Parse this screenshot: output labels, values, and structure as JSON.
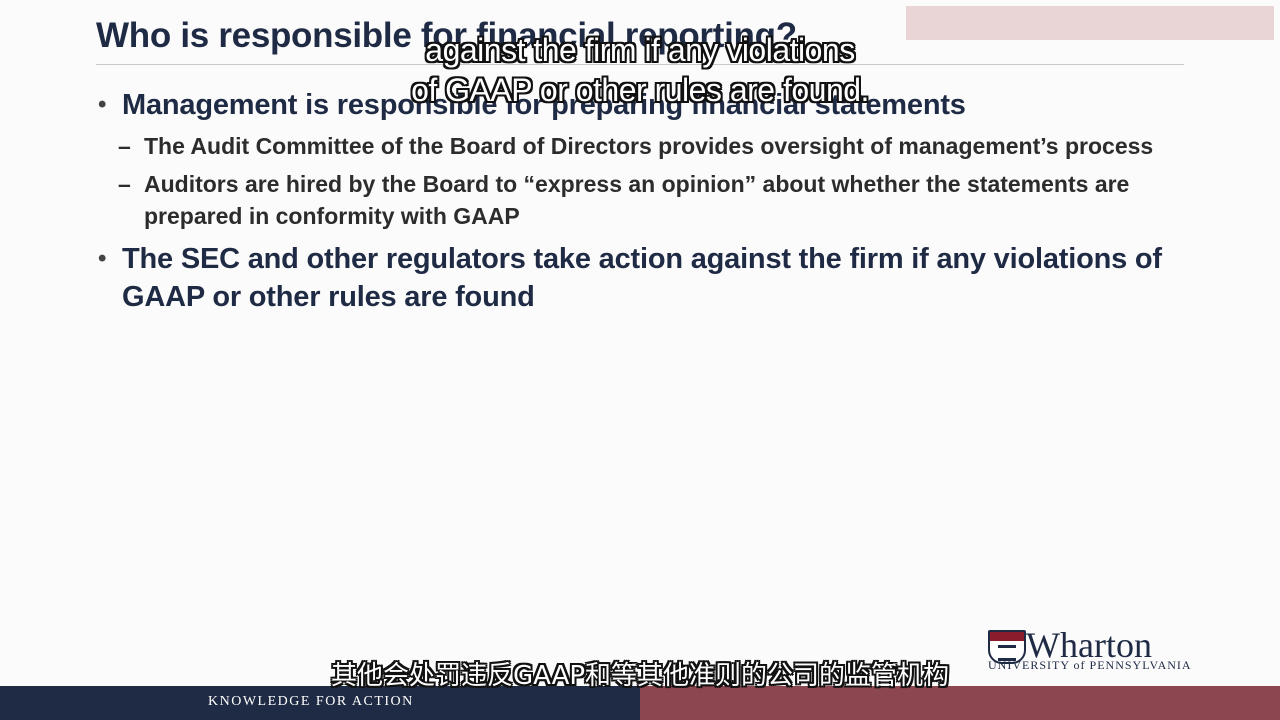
{
  "slide": {
    "title": "Who is responsible for financial reporting?",
    "bullets": [
      {
        "text": "Management is responsible for preparing financial statements",
        "subs": [
          "The Audit Committee of the Board of Directors provides oversight of management’s process",
          "Auditors are hired by the Board to “express an opinion” about whether the statements are prepared in conformity with GAAP"
        ]
      },
      {
        "text": "The SEC and other regulators take action against the firm if any violations of GAAP or other rules are found",
        "subs": []
      }
    ],
    "bullet_glyph": "•",
    "dash_glyph": "–"
  },
  "captions": {
    "english_line1": "against the firm if any violations",
    "english_line2": "of GAAP or other rules are found.",
    "chinese": "其他会处罚违反GAAP和等其他准则的公司的监管机构"
  },
  "branding": {
    "logo_word": "Wharton",
    "logo_sub": "UNIVERSITY of PENNSYLVANIA",
    "footer_text": "KNOWLEDGE FOR ACTION",
    "colors": {
      "navy": "#1f2a44",
      "maroon": "#8c4650",
      "band": "#ead5d6"
    }
  }
}
